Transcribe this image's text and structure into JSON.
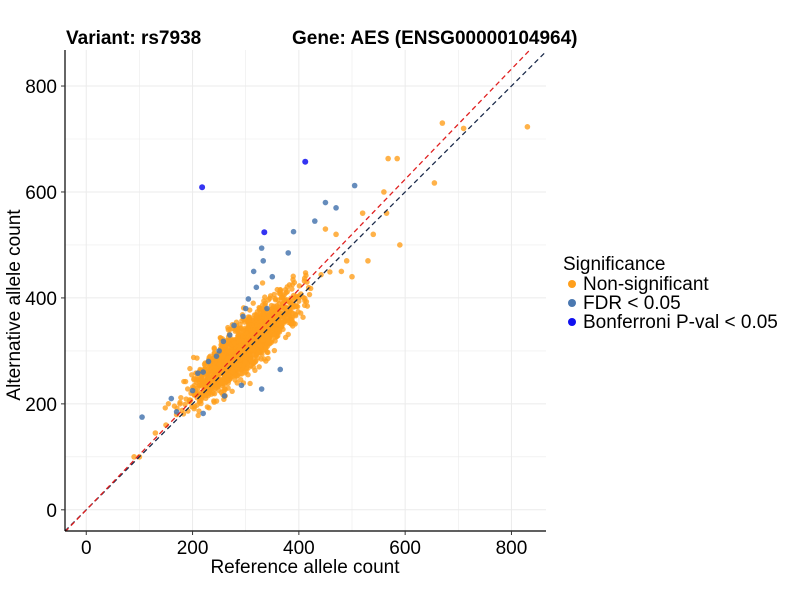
{
  "chart_data": {
    "type": "scatter",
    "title_left": "Variant: rs7938",
    "title_right": "Gene: AES (ENSG00000104964)",
    "xlabel": "Reference allele count",
    "ylabel": "Alternative allele count",
    "xlim": [
      -40,
      865
    ],
    "ylim": [
      -40,
      868
    ],
    "xticks": [
      0,
      200,
      400,
      600,
      800
    ],
    "yticks": [
      0,
      200,
      400,
      600,
      800
    ],
    "grid": true,
    "legend": {
      "title": "Significance",
      "placement": "right",
      "entries": [
        {
          "label": "Non-significant",
          "color": "#FF9F1C"
        },
        {
          "label": "FDR < 0.05",
          "color": "#4A78B0"
        },
        {
          "label": "Bonferroni P-val < 0.05",
          "color": "#1010F0"
        }
      ]
    },
    "reference_lines": [
      {
        "slope": 1.0,
        "intercept": 0,
        "color": "#1a2a4a",
        "style": "dashed"
      },
      {
        "slope": 1.04,
        "intercept": 0,
        "color": "#e02020",
        "style": "dashed"
      }
    ],
    "main_cloud": {
      "color": "#FF9F1C",
      "center": [
        290,
        300
      ],
      "n": 1600,
      "note": "dense cluster roughly along y = x between 90 and 450"
    },
    "series": [
      {
        "name": "Non-significant",
        "color": "#FF9F1C",
        "points": [
          [
            830,
            723
          ],
          [
            670,
            730
          ],
          [
            710,
            720
          ],
          [
            585,
            663
          ],
          [
            568,
            663
          ],
          [
            655,
            617
          ],
          [
            560,
            600
          ],
          [
            565,
            560
          ],
          [
            590,
            500
          ],
          [
            530,
            470
          ],
          [
            480,
            450
          ],
          [
            500,
            440
          ],
          [
            490,
            470
          ],
          [
            470,
            520
          ],
          [
            450,
            530
          ],
          [
            540,
            520
          ],
          [
            520,
            560
          ],
          [
            100,
            100
          ],
          [
            90,
            100
          ],
          [
            130,
            145
          ],
          [
            150,
            160
          ],
          [
            170,
            180
          ]
        ]
      },
      {
        "name": "FDR < 0.05",
        "color": "#4A78B0",
        "points": [
          [
            105,
            175
          ],
          [
            160,
            210
          ],
          [
            170,
            185
          ],
          [
            200,
            225
          ],
          [
            220,
            182
          ],
          [
            210,
            258
          ],
          [
            230,
            280
          ],
          [
            250,
            300
          ],
          [
            258,
            318
          ],
          [
            278,
            348
          ],
          [
            295,
            365
          ],
          [
            305,
            398
          ],
          [
            320,
            420
          ],
          [
            333,
            470
          ],
          [
            330,
            494
          ],
          [
            350,
            440
          ],
          [
            380,
            485
          ],
          [
            390,
            525
          ],
          [
            430,
            545
          ],
          [
            450,
            580
          ],
          [
            470,
            570
          ],
          [
            505,
            612
          ],
          [
            365,
            265
          ],
          [
            330,
            228
          ],
          [
            292,
            235
          ],
          [
            260,
            215
          ],
          [
            220,
            260
          ],
          [
            245,
            290
          ],
          [
            270,
            330
          ],
          [
            300,
            380
          ],
          [
            315,
            450
          ],
          [
            340,
            380
          ]
        ]
      },
      {
        "name": "Bonferroni P-val < 0.05",
        "color": "#1010F0",
        "points": [
          [
            218,
            609
          ],
          [
            412,
            657
          ],
          [
            335,
            524
          ]
        ]
      }
    ]
  }
}
